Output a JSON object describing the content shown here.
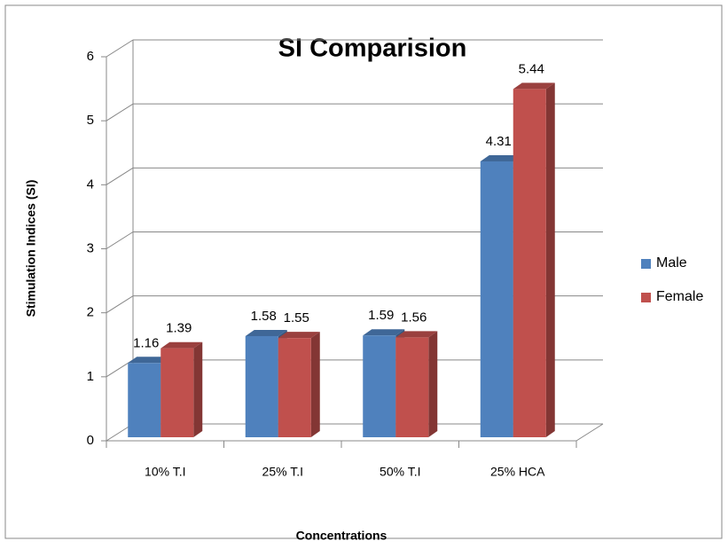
{
  "chart_data": {
    "type": "bar3d",
    "title": "SI Comparision",
    "y_label": "Stimulation Indices (SI)",
    "x_label": "Concentrations",
    "categories": [
      "10% T.I",
      "25% T.I",
      "50% T.I",
      "25% HCA"
    ],
    "series": [
      {
        "name": "Male",
        "color": "#4f81bd",
        "values": [
          1.16,
          1.58,
          1.59,
          4.31
        ]
      },
      {
        "name": "Female",
        "color": "#c0504d",
        "values": [
          1.39,
          1.55,
          1.56,
          5.44
        ]
      }
    ],
    "ylim": [
      0,
      6
    ],
    "yticks": [
      0,
      1,
      2,
      3,
      4,
      5,
      6
    ],
    "grid": true,
    "legend": "right"
  }
}
